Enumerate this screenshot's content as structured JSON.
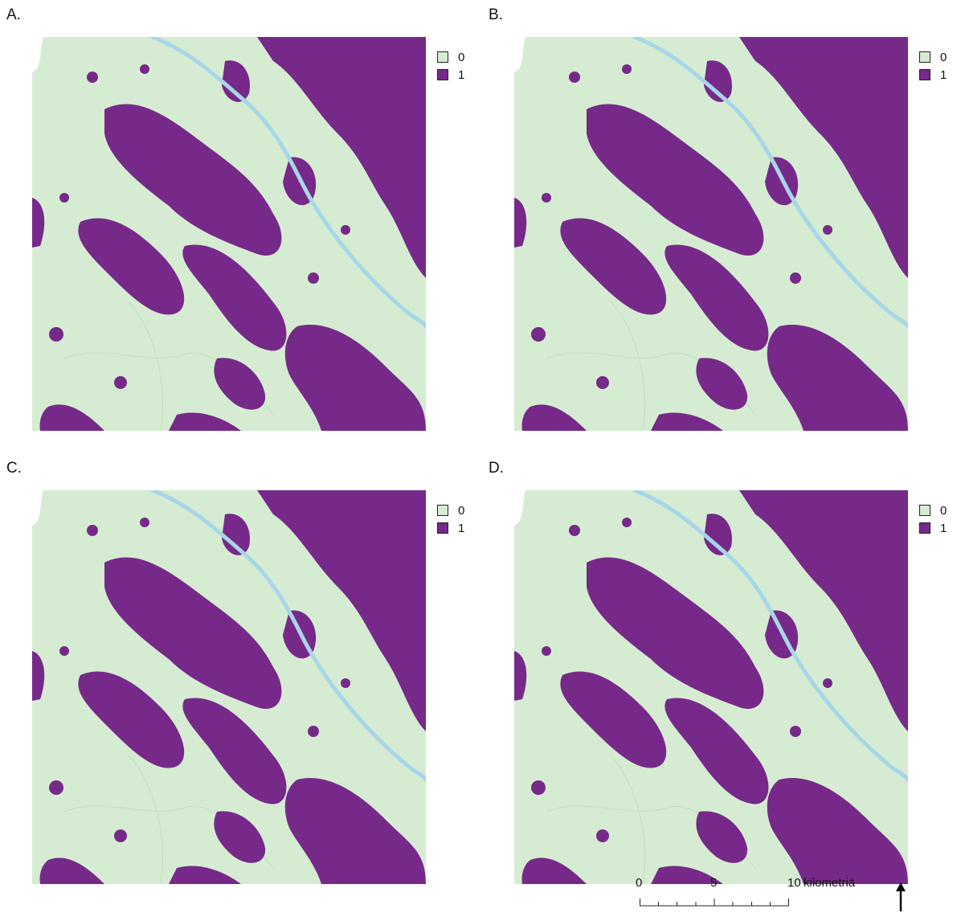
{
  "panels": [
    {
      "label": "A."
    },
    {
      "label": "B."
    },
    {
      "label": "C."
    },
    {
      "label": "D."
    }
  ],
  "legend": {
    "items": [
      {
        "value": "0",
        "color": "#d5ecd2"
      },
      {
        "value": "1",
        "color": "#77298a"
      }
    ]
  },
  "colors": {
    "background": "#d5ecd2",
    "class_1": "#77298a",
    "river": "#a7d6e8",
    "nodata": "#ffffff"
  },
  "scale": {
    "ticks": [
      "0",
      "5",
      "10"
    ],
    "unit": "kilometriä"
  },
  "north_arrow": "north-arrow-icon"
}
